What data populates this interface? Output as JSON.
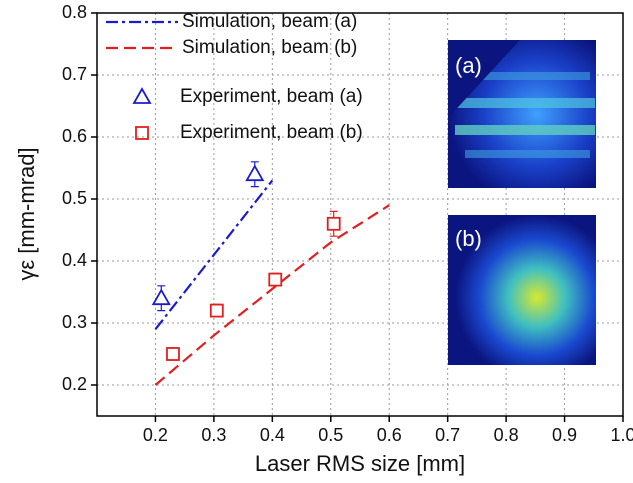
{
  "chart_data": {
    "type": "line",
    "x_label": "Laser RMS size [mm]",
    "y_label": "γε [mm-mrad]",
    "xlim": [
      0.1,
      1.0
    ],
    "ylim": [
      0.15,
      0.8
    ],
    "xticks": [
      0.2,
      0.3,
      0.4,
      0.5,
      0.6,
      0.7,
      0.8,
      0.9,
      {
        "value": 1.0,
        "label": "1.0"
      }
    ],
    "yticks": [
      0.2,
      0.3,
      0.4,
      0.5,
      0.6,
      0.7,
      0.8
    ],
    "grid": true,
    "legend": "upper left",
    "annotations": [
      "(a)",
      "(b)"
    ],
    "series": [
      {
        "name": "Simulation, beam (a)",
        "type": "line",
        "dash": "dashdot",
        "color": "#1c1ccc",
        "x": [
          0.2,
          0.3,
          0.4
        ],
        "values": [
          0.29,
          0.41,
          0.53
        ]
      },
      {
        "name": "Simulation, beam (b)",
        "type": "line",
        "dash": "dashed",
        "color": "#e02020",
        "x": [
          0.2,
          0.3,
          0.4,
          0.5,
          0.6
        ],
        "values": [
          0.2,
          0.28,
          0.355,
          0.43,
          0.49
        ]
      },
      {
        "name": "Experiment, beam (a)",
        "type": "scatter",
        "marker": "triangle",
        "color": "#1c1ccc",
        "x": [
          0.21,
          0.37
        ],
        "values": [
          0.34,
          0.54
        ],
        "errors": [
          0.02,
          0.02
        ]
      },
      {
        "name": "Experiment, beam (b)",
        "type": "scatter",
        "marker": "square",
        "color": "#e02020",
        "x": [
          0.23,
          0.305,
          0.405,
          0.505
        ],
        "values": [
          0.25,
          0.32,
          0.37,
          0.46
        ],
        "errors": [
          0.01,
          0.01,
          0.01,
          0.02
        ]
      }
    ]
  }
}
